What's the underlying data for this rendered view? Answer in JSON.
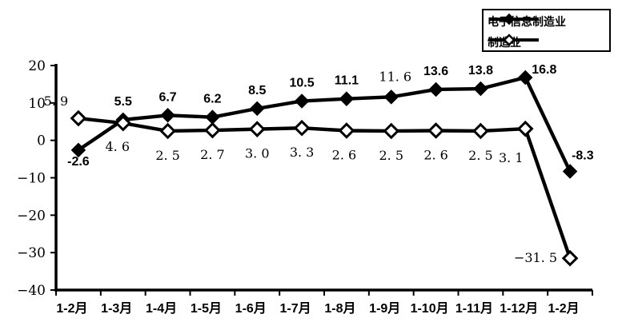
{
  "chart_data": {
    "type": "line",
    "categories": [
      "1-2月",
      "1-3月",
      "1-4月",
      "1-5月",
      "1-6月",
      "1-7月",
      "1-8月",
      "1-9月",
      "1-10月",
      "1-11月",
      "1-12月",
      "1-2月"
    ],
    "ylim": [
      -40,
      20
    ],
    "yticks": [
      {
        "v": 20,
        "label": "20"
      },
      {
        "v": 10,
        "label": "10"
      },
      {
        "v": 0,
        "label": "0"
      },
      {
        "v": -10,
        "label": "−10"
      },
      {
        "v": -20,
        "label": "−20"
      },
      {
        "v": -30,
        "label": "−30"
      },
      {
        "v": -40,
        "label": "−40"
      }
    ],
    "grid": false,
    "legend_position": "top-right",
    "line_color": "#000000",
    "background_color": "#ffffff",
    "series": [
      {
        "name": "电子信息制造业",
        "marker": "filled-diamond",
        "values": [
          -2.6,
          5.5,
          6.7,
          6.2,
          8.5,
          10.5,
          11.1,
          11.6,
          13.6,
          13.8,
          16.8,
          -8.3
        ],
        "labels": [
          {
            "t": "-2.6",
            "dx": 0,
            "dy": 19,
            "anchor": "middle",
            "font": "sans-bold"
          },
          {
            "t": "5.5",
            "dx": 0,
            "dy": -18,
            "anchor": "middle",
            "font": "sans-bold"
          },
          {
            "t": "6.7",
            "dx": 0,
            "dy": -18,
            "anchor": "middle",
            "font": "sans-bold"
          },
          {
            "t": "6.2",
            "dx": 0,
            "dy": -18,
            "anchor": "middle",
            "font": "sans-bold"
          },
          {
            "t": "8.5",
            "dx": 0,
            "dy": -18,
            "anchor": "middle",
            "font": "sans-bold"
          },
          {
            "t": "10.5",
            "dx": 0,
            "dy": -18,
            "anchor": "middle",
            "font": "sans-bold"
          },
          {
            "t": "11.1",
            "dx": 0,
            "dy": -18,
            "anchor": "middle",
            "font": "sans-bold"
          },
          {
            "t": "11. 6",
            "dx": 5,
            "dy": -20,
            "anchor": "middle",
            "font": "serif"
          },
          {
            "t": "13.6",
            "dx": 0,
            "dy": -18,
            "anchor": "middle",
            "font": "sans-bold"
          },
          {
            "t": "13.8",
            "dx": 0,
            "dy": -18,
            "anchor": "middle",
            "font": "sans-bold"
          },
          {
            "t": "16.8",
            "dx": 8,
            "dy": -5,
            "anchor": "start",
            "font": "sans-bold"
          },
          {
            "t": "-8.3",
            "dx": 2,
            "dy": -15,
            "anchor": "start",
            "font": "sans-bold"
          }
        ]
      },
      {
        "name": "制造业",
        "marker": "hollow-diamond",
        "values": [
          5.9,
          4.6,
          2.5,
          2.7,
          3.0,
          3.3,
          2.6,
          2.5,
          2.6,
          2.5,
          3.1,
          -31.5
        ],
        "labels": [
          {
            "t": "5. 9",
            "dx": -28,
            "dy": -16,
            "anchor": "middle",
            "font": "serif"
          },
          {
            "t": "4. 6",
            "dx": -7,
            "dy": 35,
            "anchor": "middle",
            "font": "serif"
          },
          {
            "t": "2. 5",
            "dx": 0,
            "dy": 36,
            "anchor": "middle",
            "font": "serif"
          },
          {
            "t": "2. 7",
            "dx": 0,
            "dy": 36,
            "anchor": "middle",
            "font": "serif"
          },
          {
            "t": "3. 0",
            "dx": 0,
            "dy": 36,
            "anchor": "middle",
            "font": "serif"
          },
          {
            "t": "3. 3",
            "dx": 0,
            "dy": 36,
            "anchor": "middle",
            "font": "serif"
          },
          {
            "t": "2. 6",
            "dx": -3,
            "dy": 36,
            "anchor": "middle",
            "font": "serif"
          },
          {
            "t": "2. 5",
            "dx": 0,
            "dy": 36,
            "anchor": "middle",
            "font": "serif"
          },
          {
            "t": "2. 6",
            "dx": 0,
            "dy": 36,
            "anchor": "middle",
            "font": "serif"
          },
          {
            "t": "2. 5",
            "dx": 0,
            "dy": 36,
            "anchor": "middle",
            "font": "serif"
          },
          {
            "t": "3. 1",
            "dx": -18,
            "dy": 42,
            "anchor": "middle",
            "font": "serif"
          },
          {
            "t": "−31. 5",
            "dx": -16,
            "dy": 5,
            "anchor": "end",
            "font": "serif"
          }
        ]
      }
    ]
  }
}
